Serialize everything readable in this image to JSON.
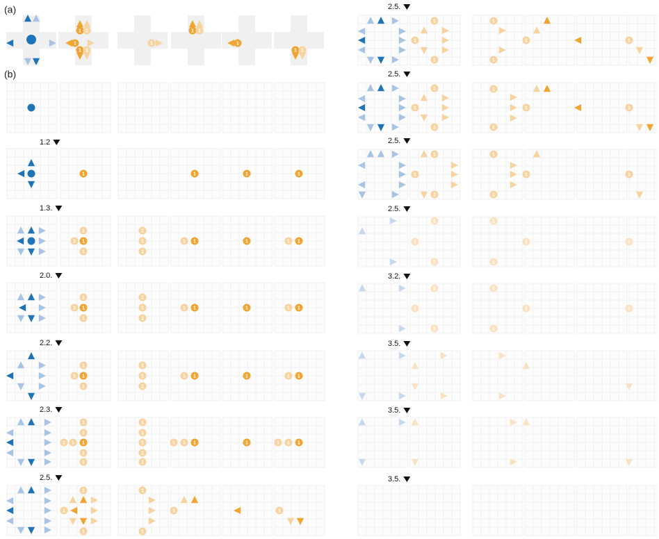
{
  "panel_labels": [
    "(a)",
    "(b)"
  ],
  "badge": "1",
  "left_steps": [
    "1.2",
    "1.3.",
    "2.0.",
    "2.2.",
    "2.3.",
    "2.5."
  ],
  "right_steps": [
    "2.5.",
    "2.5.",
    "2.5.",
    "2.5.",
    "3.2.",
    "3.5.",
    "3.5.",
    "3.5."
  ]
}
